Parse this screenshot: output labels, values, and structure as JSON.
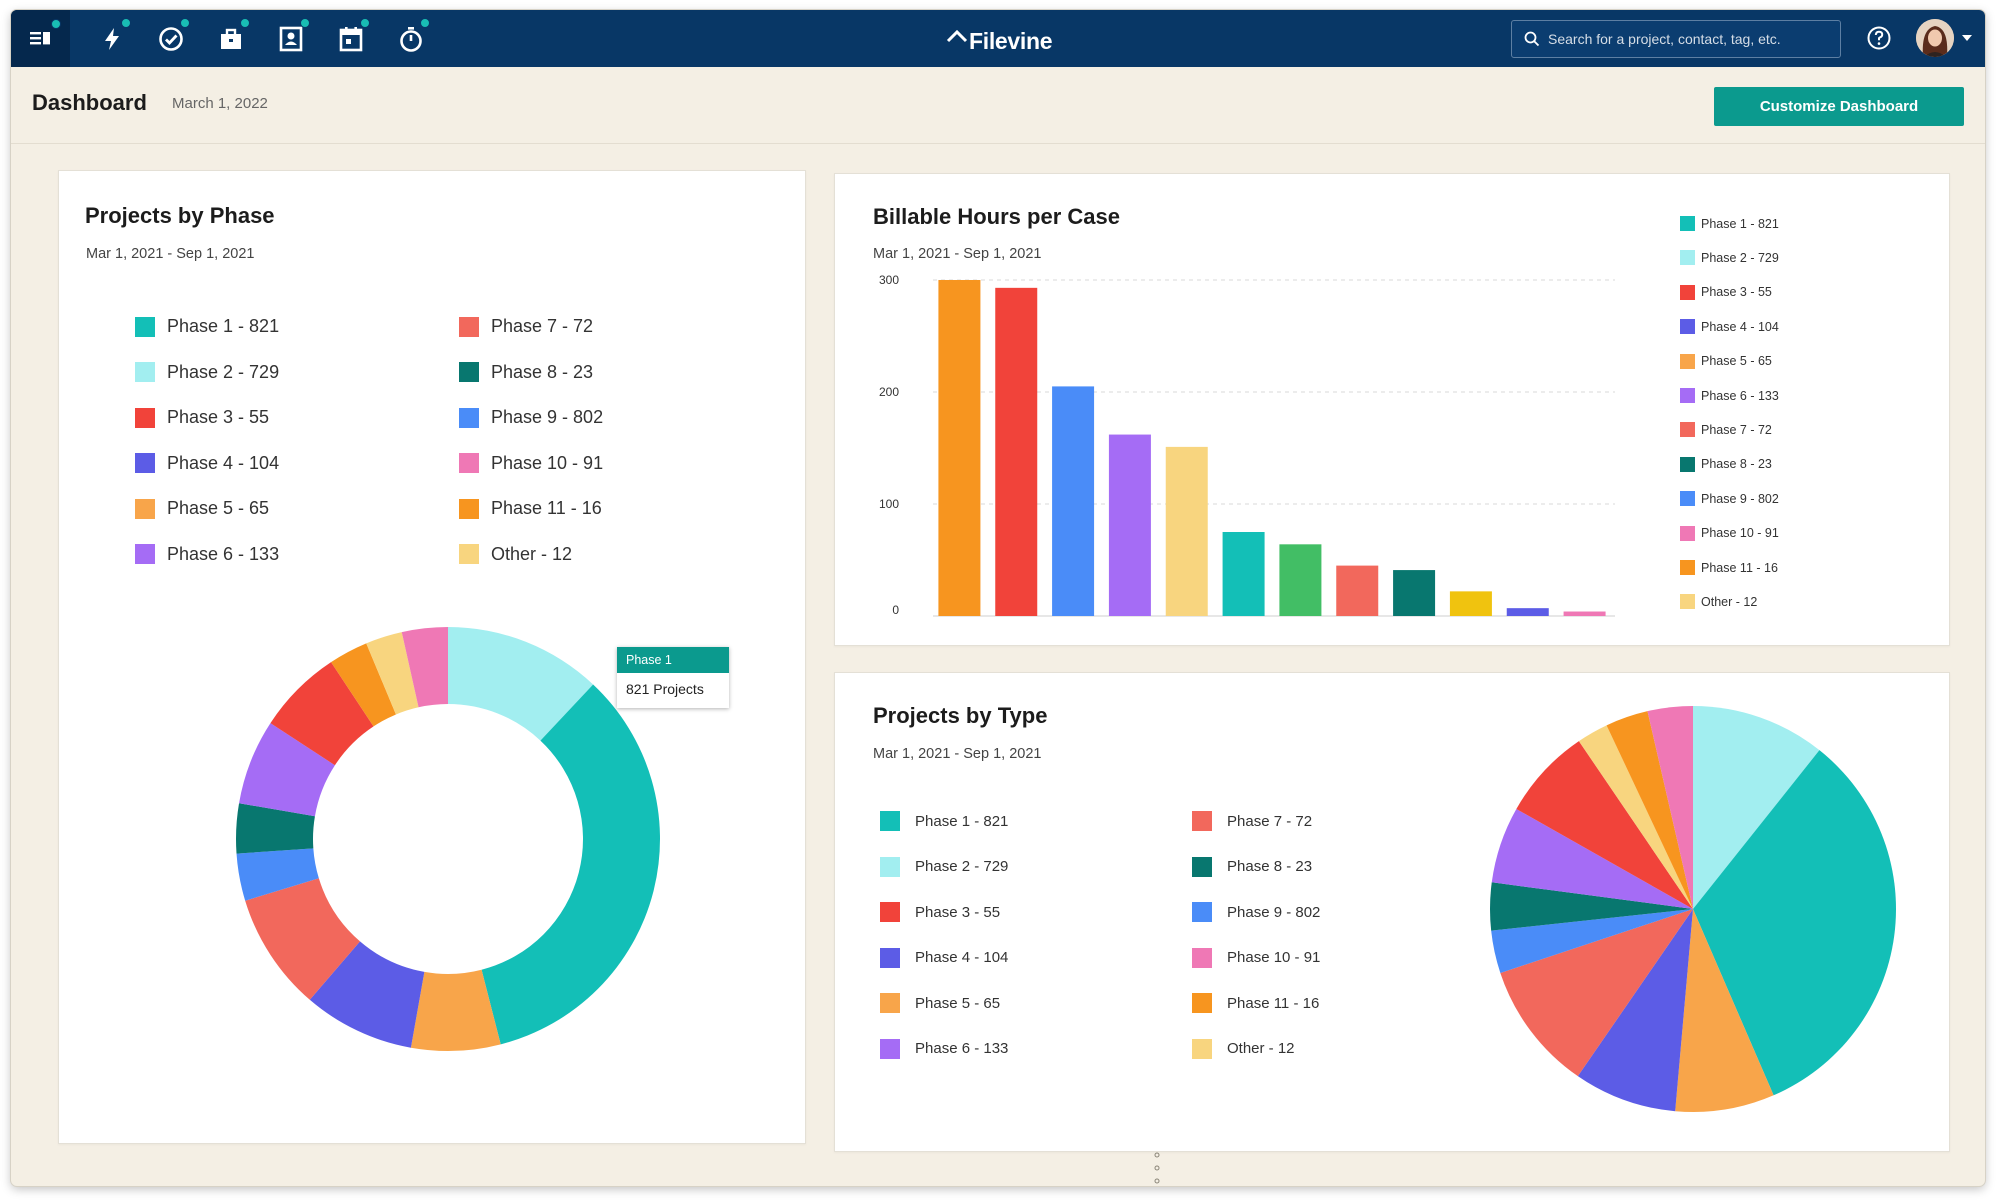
{
  "app": {
    "brand": "Filevine"
  },
  "nav": {
    "icons": [
      "feed-icon",
      "activity-icon",
      "tasks-icon",
      "projects-icon",
      "contacts-icon",
      "calendar-icon",
      "timer-icon"
    ]
  },
  "search": {
    "placeholder": "Search for a project, contact, tag, etc."
  },
  "header": {
    "title": "Dashboard",
    "date": "March 1, 2022",
    "customize_label": "Customize Dashboard"
  },
  "colors": {
    "nav_bg": "#083766",
    "accent": "#0b9a8e",
    "page_bg": "#f4efe4",
    "phase": [
      "#13bfb7",
      "#a2eef0",
      "#f1433a",
      "#5c5ce6",
      "#f8a54a",
      "#a56cf5",
      "#f2685c",
      "#08776f",
      "#4a8cf8",
      "#ef78b5",
      "#f7951f",
      "#f8d57f"
    ]
  },
  "legend_items": [
    "Phase 1 - 821",
    "Phase 2 - 729",
    "Phase 3 - 55",
    "Phase 4 - 104",
    "Phase 5 - 65",
    "Phase 6 - 133",
    "Phase 7 - 72",
    "Phase 8 - 23",
    "Phase 9 - 802",
    "Phase 10 - 91",
    "Phase 11 - 16",
    "Other - 12"
  ],
  "cards": {
    "phase": {
      "title": "Projects by Phase",
      "date_range": "Mar 1, 2021 - Sep 1, 2021"
    },
    "billable": {
      "title": "Billable Hours per Case",
      "date_range": "Mar 1, 2021 - Sep 1, 2021"
    },
    "type": {
      "title": "Projects by Type",
      "date_range": "Mar 1, 2021 - Sep 1, 2021"
    }
  },
  "tooltip": {
    "title": "Phase 1",
    "value": "821 Projects"
  },
  "chart_data": [
    {
      "type": "pie",
      "variant": "donut",
      "title": "Projects by Phase",
      "subtitle": "Mar 1, 2021 - Sep 1, 2021",
      "categories": [
        "Phase 1",
        "Phase 2",
        "Phase 3",
        "Phase 4",
        "Phase 5",
        "Phase 6",
        "Phase 7",
        "Phase 8",
        "Phase 9",
        "Phase 10",
        "Phase 11",
        "Other"
      ],
      "values": [
        821,
        729,
        55,
        104,
        65,
        133,
        72,
        23,
        802,
        91,
        16,
        12
      ],
      "slice_order": [
        1,
        0,
        4,
        3,
        6,
        8,
        7,
        5,
        2,
        10,
        11,
        9
      ],
      "slice_fractions": [
        0.12,
        0.34,
        0.068,
        0.085,
        0.09,
        0.036,
        0.038,
        0.065,
        0.065,
        0.03,
        0.028,
        0.035
      ]
    },
    {
      "type": "bar",
      "title": "Billable Hours per Case",
      "subtitle": "Mar 1, 2021 - Sep 1, 2021",
      "yticks": [
        0,
        100,
        200,
        300
      ],
      "ylim": [
        0,
        300
      ],
      "grid": true,
      "legend": "right",
      "values": [
        300,
        293,
        205,
        162,
        151,
        75,
        64,
        45,
        41,
        22,
        7,
        4
      ],
      "bar_color_index": [
        10,
        2,
        8,
        5,
        11,
        0,
        12,
        6,
        7,
        13,
        3,
        9
      ],
      "extra_colors": [
        "#42be65",
        "#f0c30f"
      ]
    },
    {
      "type": "pie",
      "title": "Projects by Type",
      "subtitle": "Mar 1, 2021 - Sep 1, 2021",
      "categories": [
        "Phase 1",
        "Phase 2",
        "Phase 3",
        "Phase 4",
        "Phase 5",
        "Phase 6",
        "Phase 7",
        "Phase 8",
        "Phase 9",
        "Phase 10",
        "Phase 11",
        "Other"
      ],
      "values": [
        821,
        729,
        55,
        104,
        65,
        133,
        72,
        23,
        802,
        91,
        16,
        12
      ],
      "slice_order": [
        1,
        0,
        4,
        3,
        6,
        8,
        7,
        5,
        2,
        11,
        10,
        9
      ],
      "slice_fractions": [
        0.107,
        0.328,
        0.079,
        0.082,
        0.103,
        0.034,
        0.038,
        0.061,
        0.073,
        0.025,
        0.034,
        0.036
      ]
    }
  ]
}
